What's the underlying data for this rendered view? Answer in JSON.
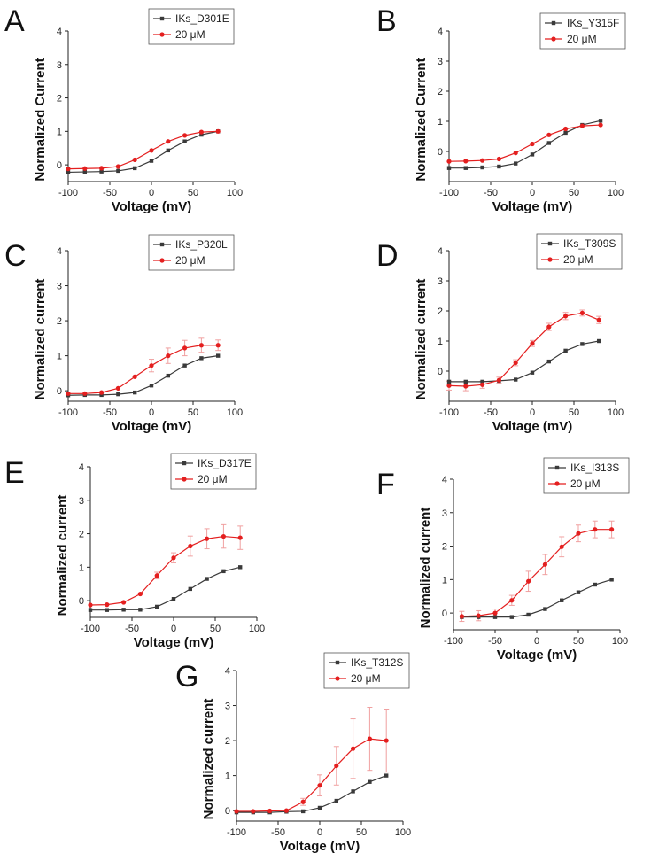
{
  "colors": {
    "mutant": "#3a3a3a",
    "drug": "#e41f1f",
    "error": "#f0a0a0"
  },
  "chart_data": [
    {
      "panel": "A",
      "type": "line",
      "ylabel": "Normalized Current",
      "xlabel": "Voltage (mV)",
      "xlim": [
        -100,
        100
      ],
      "ylim": [
        -0.5,
        4
      ],
      "xticks": [
        -100,
        -50,
        0,
        50,
        100
      ],
      "yticks": [
        0,
        1,
        2,
        3,
        4
      ],
      "legend_position": "top-right",
      "x": [
        -100,
        -80,
        -60,
        -40,
        -20,
        0,
        20,
        40,
        60,
        80
      ],
      "series": [
        {
          "name": "IKs_D301E",
          "values": [
            -0.22,
            -0.21,
            -0.2,
            -0.18,
            -0.1,
            0.12,
            0.43,
            0.7,
            0.9,
            1.0
          ]
        },
        {
          "name": "20 μM",
          "values": [
            -0.12,
            -0.11,
            -0.1,
            -0.05,
            0.15,
            0.43,
            0.7,
            0.88,
            0.98,
            1.0
          ]
        }
      ]
    },
    {
      "panel": "B",
      "type": "line",
      "ylabel": "Normalized Current",
      "xlabel": "Voltage (mV)",
      "xlim": [
        -100,
        100
      ],
      "ylim": [
        -1,
        4
      ],
      "xticks": [
        -100,
        -50,
        0,
        50,
        100
      ],
      "yticks": [
        0,
        1,
        2,
        3,
        4
      ],
      "legend_position": "top-right",
      "x": [
        -100,
        -80,
        -60,
        -40,
        -20,
        0,
        20,
        40,
        60,
        82
      ],
      "series": [
        {
          "name": "IKs_Y315F",
          "values": [
            -0.55,
            -0.55,
            -0.53,
            -0.5,
            -0.4,
            -0.1,
            0.28,
            0.62,
            0.88,
            1.02
          ]
        },
        {
          "name": "20 μM",
          "values": [
            -0.33,
            -0.32,
            -0.3,
            -0.25,
            -0.05,
            0.25,
            0.55,
            0.75,
            0.85,
            0.88
          ]
        }
      ]
    },
    {
      "panel": "C",
      "type": "line",
      "ylabel": "Normalized current",
      "xlabel": "Voltage (mV)",
      "xlim": [
        -100,
        100
      ],
      "ylim": [
        -0.3,
        4
      ],
      "xticks": [
        -100,
        -50,
        0,
        50,
        100
      ],
      "yticks": [
        0,
        1,
        2,
        3,
        4
      ],
      "legend_position": "top-right",
      "x": [
        -100,
        -80,
        -60,
        -40,
        -20,
        0,
        20,
        40,
        60,
        80
      ],
      "series": [
        {
          "name": "IKs_P320L",
          "values": [
            -0.13,
            -0.12,
            -0.12,
            -0.1,
            -0.05,
            0.15,
            0.43,
            0.72,
            0.93,
            1.0
          ]
        },
        {
          "name": "20 μM",
          "values": [
            -0.08,
            -0.08,
            -0.05,
            0.07,
            0.4,
            0.72,
            1.0,
            1.22,
            1.3,
            1.3
          ]
        }
      ],
      "error": [
        null,
        null,
        null,
        null,
        null,
        0.18,
        0.22,
        0.22,
        0.2,
        0.15
      ]
    },
    {
      "panel": "D",
      "type": "line",
      "ylabel": "Normalized current",
      "xlabel": "Voltage (mV)",
      "xlim": [
        -100,
        100
      ],
      "ylim": [
        -1,
        4
      ],
      "xticks": [
        -100,
        -50,
        0,
        50,
        100
      ],
      "yticks": [
        0,
        1,
        2,
        3,
        4
      ],
      "legend_position": "top-right",
      "x": [
        -100,
        -80,
        -60,
        -40,
        -20,
        0,
        20,
        40,
        60,
        80
      ],
      "series": [
        {
          "name": "IKs_T309S",
          "values": [
            -0.35,
            -0.35,
            -0.35,
            -0.32,
            -0.28,
            -0.05,
            0.32,
            0.68,
            0.9,
            1.0
          ]
        },
        {
          "name": "20 μM",
          "values": [
            -0.48,
            -0.5,
            -0.45,
            -0.3,
            0.28,
            0.92,
            1.47,
            1.83,
            1.93,
            1.7
          ]
        }
      ],
      "error": [
        0.15,
        0.15,
        0.12,
        0.1,
        0.1,
        0.1,
        0.12,
        0.12,
        0.1,
        0.12
      ]
    },
    {
      "panel": "E",
      "type": "line",
      "ylabel": "Normalized current",
      "xlabel": "Voltage (mV)",
      "xlim": [
        -100,
        100
      ],
      "ylim": [
        -0.5,
        4
      ],
      "xticks": [
        -100,
        -50,
        0,
        50,
        100
      ],
      "yticks": [
        0,
        1,
        2,
        3,
        4
      ],
      "legend_position": "top-right",
      "x": [
        -100,
        -80,
        -60,
        -40,
        -20,
        0,
        20,
        40,
        60,
        80
      ],
      "series": [
        {
          "name": "IKs_D317E",
          "values": [
            -0.28,
            -0.28,
            -0.27,
            -0.27,
            -0.18,
            0.05,
            0.35,
            0.65,
            0.88,
            1.0
          ]
        },
        {
          "name": "20 μM",
          "values": [
            -0.13,
            -0.12,
            -0.05,
            0.2,
            0.75,
            1.28,
            1.63,
            1.85,
            1.92,
            1.88
          ]
        }
      ],
      "error": [
        null,
        null,
        null,
        null,
        0.1,
        0.15,
        0.3,
        0.3,
        0.35,
        0.35
      ]
    },
    {
      "panel": "F",
      "type": "line",
      "ylabel": "Normalized current",
      "xlabel": "Voltage (mV)",
      "xlim": [
        -100,
        100
      ],
      "ylim": [
        -0.5,
        4
      ],
      "xticks": [
        -100,
        -50,
        0,
        50,
        100
      ],
      "yticks": [
        0,
        1,
        2,
        3,
        4
      ],
      "legend_position": "top-right",
      "x": [
        -90,
        -70,
        -50,
        -30,
        -10,
        10,
        30,
        50,
        70,
        90
      ],
      "series": [
        {
          "name": "IKs_I313S",
          "values": [
            -0.12,
            -0.12,
            -0.12,
            -0.12,
            -0.05,
            0.12,
            0.38,
            0.62,
            0.85,
            1.0
          ]
        },
        {
          "name": "20 μM",
          "values": [
            -0.1,
            -0.08,
            0.0,
            0.38,
            0.95,
            1.45,
            1.98,
            2.38,
            2.5,
            2.5
          ]
        }
      ],
      "error": [
        0.15,
        0.15,
        0.12,
        0.15,
        0.3,
        0.3,
        0.3,
        0.25,
        0.25,
        0.25
      ]
    },
    {
      "panel": "G",
      "type": "line",
      "ylabel": "Normalized current",
      "xlabel": "Voltage (mV)",
      "xlim": [
        -100,
        100
      ],
      "ylim": [
        -0.3,
        4
      ],
      "xticks": [
        -100,
        -50,
        0,
        50,
        100
      ],
      "yticks": [
        0,
        1,
        2,
        3,
        4
      ],
      "legend_position": "top-right",
      "x": [
        -100,
        -80,
        -60,
        -40,
        -20,
        0,
        20,
        40,
        60,
        80
      ],
      "series": [
        {
          "name": "IKs_T312S",
          "values": [
            -0.05,
            -0.05,
            -0.05,
            -0.03,
            -0.02,
            0.08,
            0.28,
            0.55,
            0.82,
            1.0
          ]
        },
        {
          "name": "20 μM",
          "values": [
            -0.02,
            -0.02,
            -0.01,
            0.0,
            0.25,
            0.72,
            1.28,
            1.77,
            2.05,
            2.0
          ]
        }
      ],
      "error": [
        null,
        null,
        null,
        null,
        0.1,
        0.3,
        0.55,
        0.85,
        0.9,
        0.9
      ]
    }
  ]
}
